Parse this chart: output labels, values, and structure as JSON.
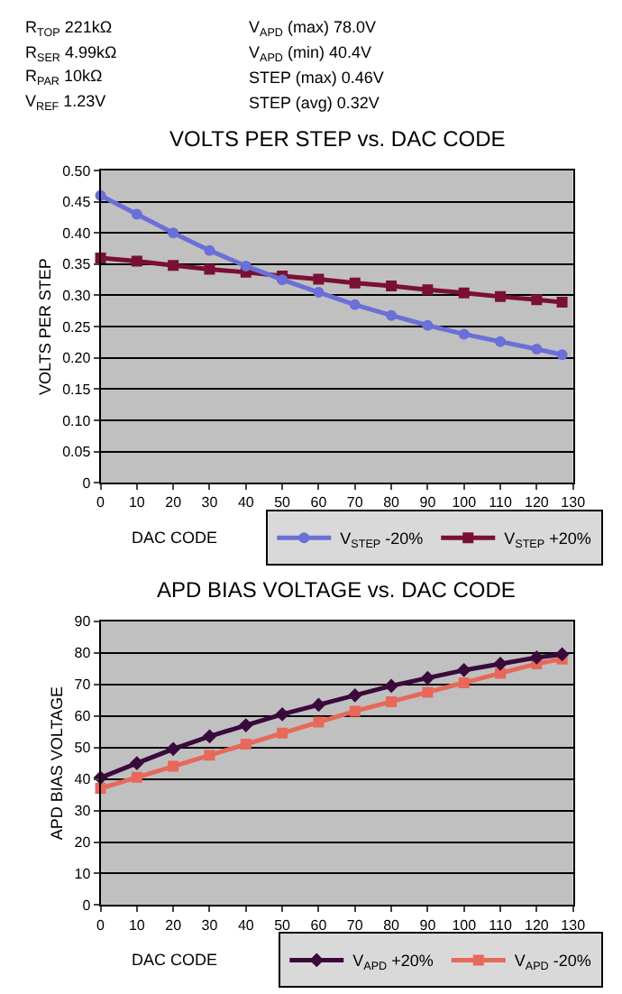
{
  "chart_data": [
    {
      "type": "line",
      "title": "VOLTS PER STEP vs. DAC CODE",
      "xlabel": "DAC CODE",
      "ylabel": "VOLTS PER STEP",
      "annotations": [
        "R$_{TOP}$ 221kΩ",
        "R$_{SER}$ 4.99kΩ",
        "R$_{PAR}$ 10kΩ",
        "V$_{REF}$ 1.23V",
        "V$_{APD}$ (max) 78.0V",
        "V$_{APD}$ (min) 40.4V",
        "STEP (max) 0.46V",
        "STEP (avg) 0.32V"
      ],
      "x": [
        0,
        10,
        20,
        30,
        40,
        50,
        60,
        70,
        80,
        90,
        100,
        110,
        120,
        127
      ],
      "series": [
        {
          "name": "V$_{STEP}$ -20%",
          "color": "#6b6fd8",
          "marker": "circle",
          "values": [
            0.46,
            0.43,
            0.4,
            0.372,
            0.347,
            0.325,
            0.305,
            0.285,
            0.268,
            0.252,
            0.238,
            0.226,
            0.214,
            0.205
          ]
        },
        {
          "name": "V$_{STEP}$ +20%",
          "color": "#7a1035",
          "marker": "square",
          "values": [
            0.36,
            0.355,
            0.348,
            0.342,
            0.337,
            0.331,
            0.326,
            0.32,
            0.315,
            0.309,
            0.304,
            0.298,
            0.293,
            0.289
          ]
        }
      ],
      "xlim": [
        0,
        130
      ],
      "xticks": [
        0,
        10,
        20,
        30,
        40,
        50,
        60,
        70,
        80,
        90,
        100,
        110,
        120,
        130
      ],
      "ylim": [
        0,
        0.5
      ],
      "yticks": [
        0,
        0.05,
        {
          "value": 0.1,
          "label": "0.10"
        },
        0.15,
        {
          "value": 0.2,
          "label": "0.20"
        },
        0.25,
        {
          "value": 0.3,
          "label": "0.30"
        },
        0.35,
        {
          "value": 0.4,
          "label": "0.40"
        },
        0.45,
        {
          "value": 0.5,
          "label": "0.50"
        }
      ],
      "grid": "y",
      "legend": "bottom right"
    },
    {
      "type": "line",
      "title": "APD BIAS VOLTAGE vs. DAC CODE",
      "xlabel": "DAC CODE",
      "ylabel": "APD BIAS VOLTAGE",
      "x": [
        0,
        10,
        20,
        30,
        40,
        50,
        60,
        70,
        80,
        90,
        100,
        110,
        120,
        127
      ],
      "series": [
        {
          "name": "V$_{APD}$ +20%",
          "color": "#3a0a3c",
          "marker": "diamond",
          "values": [
            40.4,
            45,
            49.5,
            53.5,
            57,
            60.5,
            63.5,
            66.5,
            69.5,
            72,
            74.5,
            76.5,
            78.5,
            79.5
          ]
        },
        {
          "name": "V$_{APD}$ -20%",
          "color": "#e8685a",
          "marker": "square",
          "values": [
            37,
            40.5,
            44,
            47.5,
            51,
            54.5,
            58,
            61.5,
            64.5,
            67.5,
            70.5,
            73.5,
            76.5,
            78
          ]
        }
      ],
      "xlim": [
        0,
        130
      ],
      "xticks": [
        0,
        10,
        20,
        30,
        40,
        50,
        60,
        70,
        80,
        90,
        100,
        110,
        120,
        130
      ],
      "ylim": [
        0,
        90
      ],
      "yticks": [
        0,
        10,
        20,
        30,
        40,
        50,
        60,
        70,
        80,
        90
      ],
      "grid": "y",
      "legend": "bottom right"
    }
  ]
}
